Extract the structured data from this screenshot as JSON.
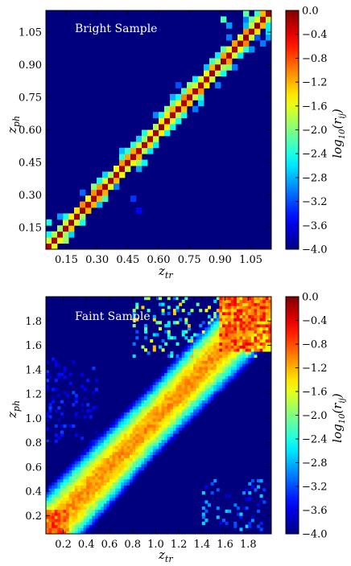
{
  "colors": {
    "background": "#00007f",
    "frame": "#000000",
    "label_on_map": "#ffffff"
  },
  "chart_data": [
    {
      "type": "heatmap",
      "title": "Bright Sample",
      "xlabel": "z_tr",
      "ylabel": "z_ph",
      "xlim": [
        0.05,
        1.15
      ],
      "ylim": [
        0.05,
        1.15
      ],
      "bins": 40,
      "grid": false,
      "x_ticks": [
        "0.15",
        "0.30",
        "0.45",
        "0.60",
        "0.75",
        "0.90",
        "1.05"
      ],
      "y_ticks": [
        "0.15",
        "0.30",
        "0.45",
        "0.60",
        "0.75",
        "0.90",
        "1.05"
      ],
      "x_tick_values": [
        0.15,
        0.3,
        0.45,
        0.6,
        0.75,
        0.9,
        1.05
      ],
      "y_tick_values": [
        0.15,
        0.3,
        0.45,
        0.6,
        0.75,
        0.9,
        1.05
      ],
      "colorbar": {
        "label": "log10(r_ij)",
        "range": [
          -4.0,
          0.0
        ],
        "ticks": [
          "0.0",
          "−0.4",
          "−0.8",
          "−1.2",
          "−1.6",
          "−2.0",
          "−2.4",
          "−2.8",
          "−3.2",
          "−3.6",
          "−4.0"
        ],
        "tick_values": [
          0.0,
          -0.4,
          -0.8,
          -1.2,
          -1.6,
          -2.0,
          -2.4,
          -2.8,
          -3.2,
          -3.6,
          -4.0
        ],
        "colormap": "jet"
      },
      "structure": {
        "diagonal_log_value": -0.05,
        "near_diagonal_log_value": -1.0,
        "spread_sigma_bins": 0.9,
        "halo_log_values": [
          -2.0,
          -2.8
        ],
        "outliers": [
          {
            "x": 0.47,
            "y": 0.27,
            "value": -3.3
          },
          {
            "x": 0.5,
            "y": 0.22,
            "value": -3.5
          },
          {
            "x": 0.4,
            "y": 0.34,
            "value": -3.0
          },
          {
            "x": 0.24,
            "y": 0.31,
            "value": -3.1
          },
          {
            "x": 0.14,
            "y": 0.08,
            "value": -1.9
          },
          {
            "x": 0.07,
            "y": 0.16,
            "value": -2.4
          },
          {
            "x": 0.12,
            "y": 0.19,
            "value": -2.9
          },
          {
            "x": 0.92,
            "y": 1.12,
            "value": -2.2
          },
          {
            "x": 0.95,
            "y": 1.08,
            "value": -2.9
          },
          {
            "x": 1.03,
            "y": 1.15,
            "value": -1.8
          }
        ]
      }
    },
    {
      "type": "heatmap",
      "title": "Faint Sample",
      "xlabel": "z_tr",
      "ylabel": "z_ph",
      "xlim": [
        0.05,
        2.0
      ],
      "ylim": [
        0.05,
        2.0
      ],
      "bins": 78,
      "grid": false,
      "x_ticks": [
        "0.2",
        "0.4",
        "0.6",
        "0.8",
        "1.0",
        "1.2",
        "1.4",
        "1.6",
        "1.8"
      ],
      "y_ticks": [
        "0.2",
        "0.4",
        "0.6",
        "0.8",
        "1.0",
        "1.2",
        "1.4",
        "1.6",
        "1.8"
      ],
      "x_tick_values": [
        0.2,
        0.4,
        0.6,
        0.8,
        1.0,
        1.2,
        1.4,
        1.6,
        1.8
      ],
      "y_tick_values": [
        0.2,
        0.4,
        0.6,
        0.8,
        1.0,
        1.2,
        1.4,
        1.6,
        1.8
      ],
      "colorbar": {
        "label": "log10(r_ij)",
        "range": [
          -4.0,
          0.0
        ],
        "ticks": [
          "0.0",
          "−0.4",
          "−0.8",
          "−1.2",
          "−1.6",
          "−2.0",
          "−2.4",
          "−2.8",
          "−3.2",
          "−3.6",
          "−4.0"
        ],
        "tick_values": [
          0.0,
          -0.4,
          -0.8,
          -1.2,
          -1.6,
          -2.0,
          -2.4,
          -2.8,
          -3.2,
          -3.6,
          -4.0
        ],
        "colormap": "jet"
      },
      "structure": {
        "diagonal_log_value": -0.9,
        "spread_sigma_bins": 4.5,
        "high_z_corner_log_value": -0.4,
        "low_z_corner_log_value": -0.5,
        "outlier_zone_low_x_high_y": {
          "x": [
            0.05,
            0.5
          ],
          "y": [
            0.8,
            1.5
          ],
          "value": -3.2
        },
        "outlier_zone_high_x_low_y": {
          "x": [
            1.4,
            1.95
          ],
          "y": [
            0.05,
            0.5
          ],
          "value": -2.6
        }
      }
    }
  ]
}
